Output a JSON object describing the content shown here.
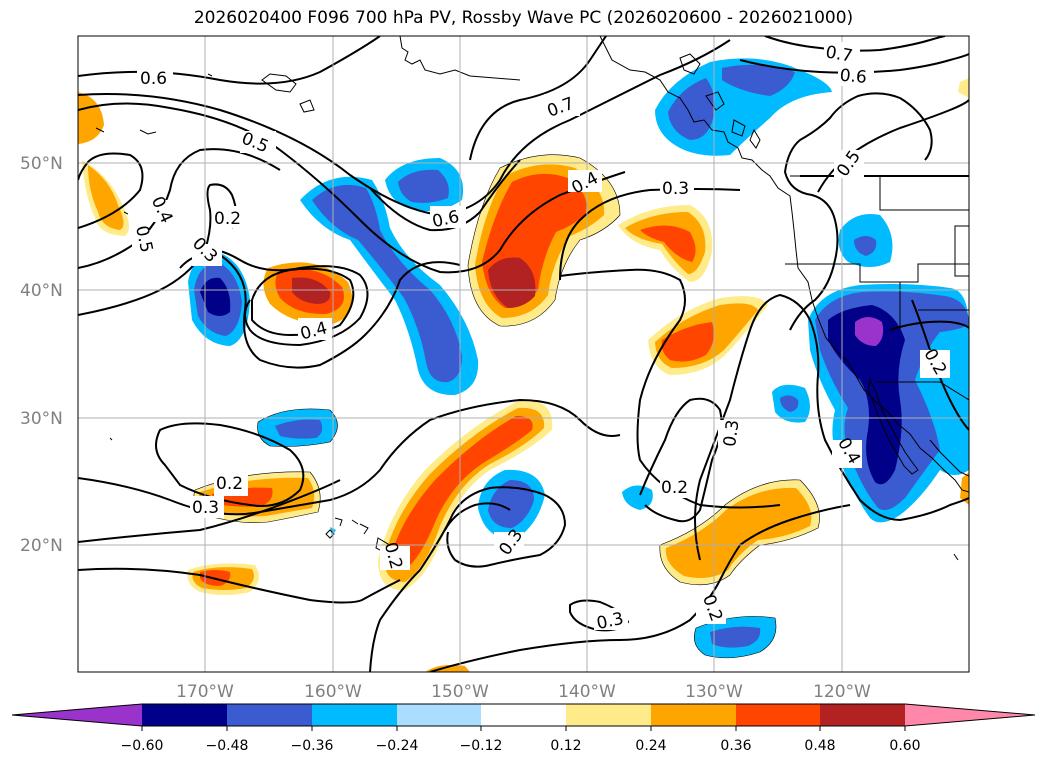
{
  "title": "2026020400 F096 700 hPa PV, Rossby Wave PC (2026020600 - 2026021000)",
  "axes": {
    "lat_labels": [
      "20°N",
      "30°N",
      "40°N",
      "50°N"
    ],
    "lon_labels": [
      "170°W",
      "160°W",
      "150°W",
      "140°W",
      "130°W",
      "120°W"
    ]
  },
  "colorbar": {
    "ticks": [
      "−0.60",
      "−0.48",
      "−0.36",
      "−0.24",
      "−0.12",
      "0.12",
      "0.24",
      "0.36",
      "0.48",
      "0.60"
    ],
    "colors": [
      "#9933cc",
      "#000088",
      "#3b5bd0",
      "#00bbff",
      "#aaddff",
      "#ffffff",
      "#ffeb8a",
      "#ffa500",
      "#ff4500",
      "#b22222",
      "#ff88aa"
    ]
  },
  "contour_labels": [
    "0.6",
    "0.5",
    "0.4",
    "0.5",
    "0.2",
    "0.3",
    "0.4",
    "0.6",
    "0.7",
    "0.4",
    "0.3",
    "0.2",
    "0.3",
    "0.3",
    "0.2",
    "0.3",
    "0.2",
    "0.3",
    "0.2",
    "0.4",
    "0.2",
    "0.7",
    "0.6",
    "0.5"
  ],
  "colors": {
    "gridline": "#b0b0b0",
    "contour": "#000000"
  }
}
